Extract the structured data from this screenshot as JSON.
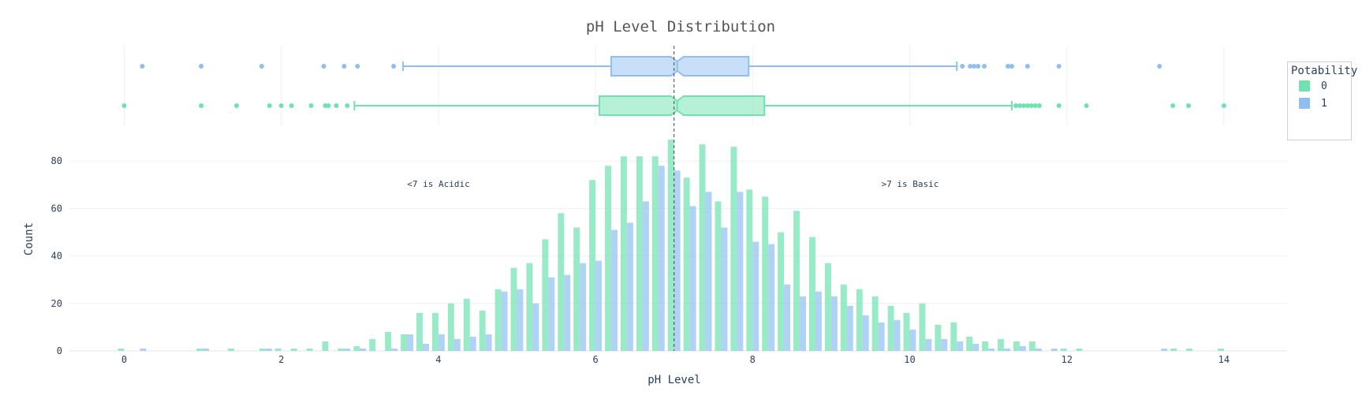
{
  "chart_data": {
    "type": "bar",
    "title": "pH Level Distribution",
    "xlabel": "pH Level",
    "ylabel": "Count",
    "xlim": [
      -0.7,
      14.8
    ],
    "ylim": [
      0,
      92
    ],
    "x_ticks": [
      0,
      2,
      4,
      6,
      8,
      10,
      12,
      14
    ],
    "y_ticks": [
      0,
      20,
      40,
      60,
      80
    ],
    "grid": true,
    "legend": {
      "title": "Potability",
      "placement": "top-right"
    },
    "reference_line": {
      "x": 7.0,
      "style": "dashed"
    },
    "annotations": [
      {
        "text": "<7 is Acidic",
        "x": 4.0,
        "y": 70
      },
      {
        "text": ">7 is Basic",
        "x": 10.0,
        "y": 70
      }
    ],
    "bin_width": 0.2,
    "series": [
      {
        "name": "0",
        "color": "#6ee3b0",
        "bins": [
          [
            0.0,
            1
          ],
          [
            1.0,
            1
          ],
          [
            1.4,
            1
          ],
          [
            1.8,
            1
          ],
          [
            2.0,
            1
          ],
          [
            2.2,
            1
          ],
          [
            2.4,
            1
          ],
          [
            2.6,
            4
          ],
          [
            2.8,
            1
          ],
          [
            3.0,
            2
          ],
          [
            3.2,
            5
          ],
          [
            3.4,
            8
          ],
          [
            3.6,
            7
          ],
          [
            3.8,
            16
          ],
          [
            4.0,
            16
          ],
          [
            4.2,
            20
          ],
          [
            4.4,
            22
          ],
          [
            4.6,
            17
          ],
          [
            4.8,
            26
          ],
          [
            5.0,
            35
          ],
          [
            5.2,
            37
          ],
          [
            5.4,
            47
          ],
          [
            5.6,
            58
          ],
          [
            5.8,
            52
          ],
          [
            6.0,
            72
          ],
          [
            6.2,
            78
          ],
          [
            6.4,
            82
          ],
          [
            6.6,
            82
          ],
          [
            6.8,
            82
          ],
          [
            7.0,
            89
          ],
          [
            7.2,
            73
          ],
          [
            7.4,
            87
          ],
          [
            7.6,
            63
          ],
          [
            7.8,
            86
          ],
          [
            8.0,
            68
          ],
          [
            8.2,
            65
          ],
          [
            8.4,
            50
          ],
          [
            8.6,
            59
          ],
          [
            8.8,
            48
          ],
          [
            9.0,
            37
          ],
          [
            9.2,
            28
          ],
          [
            9.4,
            26
          ],
          [
            9.6,
            23
          ],
          [
            9.8,
            19
          ],
          [
            10.0,
            16
          ],
          [
            10.2,
            20
          ],
          [
            10.4,
            11
          ],
          [
            10.6,
            12
          ],
          [
            10.8,
            6
          ],
          [
            11.0,
            4
          ],
          [
            11.2,
            5
          ],
          [
            11.4,
            4
          ],
          [
            11.6,
            4
          ],
          [
            12.0,
            1
          ],
          [
            12.2,
            1
          ],
          [
            13.4,
            1
          ],
          [
            13.6,
            1
          ],
          [
            14.0,
            1
          ]
        ],
        "box": {
          "q1": 6.05,
          "median": 7.04,
          "q3": 8.15,
          "lower_fence": 2.93,
          "upper_fence": 11.3,
          "outliers": [
            0.0,
            0.98,
            1.43,
            1.85,
            2.0,
            2.13,
            2.38,
            2.56,
            2.6,
            2.7,
            2.84,
            11.35,
            11.4,
            11.45,
            11.5,
            11.55,
            11.6,
            11.65,
            11.9,
            12.25,
            13.35,
            13.55,
            14.0
          ]
        }
      },
      {
        "name": "1",
        "color": "#8fbff2",
        "bins": [
          [
            0.2,
            1
          ],
          [
            1.0,
            1
          ],
          [
            1.8,
            1
          ],
          [
            2.8,
            1
          ],
          [
            3.0,
            1
          ],
          [
            3.4,
            1
          ],
          [
            3.6,
            7
          ],
          [
            3.8,
            3
          ],
          [
            4.0,
            7
          ],
          [
            4.2,
            5
          ],
          [
            4.4,
            6
          ],
          [
            4.6,
            7
          ],
          [
            4.8,
            25
          ],
          [
            5.0,
            26
          ],
          [
            5.2,
            20
          ],
          [
            5.4,
            31
          ],
          [
            5.6,
            32
          ],
          [
            5.8,
            37
          ],
          [
            6.0,
            38
          ],
          [
            6.2,
            51
          ],
          [
            6.4,
            54
          ],
          [
            6.6,
            63
          ],
          [
            6.8,
            78
          ],
          [
            7.0,
            76
          ],
          [
            7.2,
            61
          ],
          [
            7.4,
            67
          ],
          [
            7.6,
            52
          ],
          [
            7.8,
            67
          ],
          [
            8.0,
            46
          ],
          [
            8.2,
            45
          ],
          [
            8.4,
            28
          ],
          [
            8.6,
            23
          ],
          [
            8.8,
            25
          ],
          [
            9.0,
            23
          ],
          [
            9.2,
            19
          ],
          [
            9.4,
            15
          ],
          [
            9.6,
            12
          ],
          [
            9.8,
            13
          ],
          [
            10.0,
            9
          ],
          [
            10.2,
            5
          ],
          [
            10.4,
            5
          ],
          [
            10.6,
            4
          ],
          [
            10.8,
            3
          ],
          [
            11.0,
            1
          ],
          [
            11.2,
            1
          ],
          [
            11.4,
            2
          ],
          [
            11.6,
            1
          ],
          [
            11.8,
            1
          ],
          [
            13.2,
            1
          ]
        ],
        "box": {
          "q1": 6.2,
          "median": 7.04,
          "q3": 7.95,
          "lower_fence": 3.55,
          "upper_fence": 10.6,
          "outliers": [
            0.23,
            0.98,
            1.75,
            2.54,
            2.8,
            2.97,
            3.43,
            10.67,
            10.77,
            10.82,
            10.87,
            10.95,
            11.25,
            11.3,
            11.5,
            11.9,
            13.18
          ]
        }
      }
    ]
  }
}
